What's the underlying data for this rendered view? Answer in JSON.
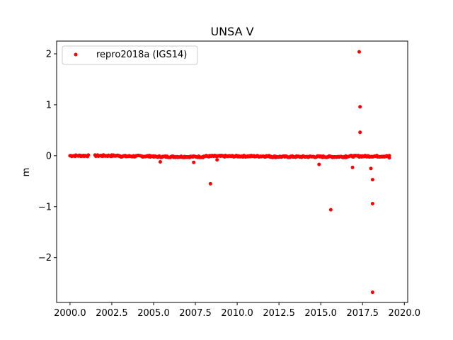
{
  "chart_data": {
    "type": "scatter",
    "title": "UNSA V",
    "xlabel": "",
    "ylabel": "m",
    "xlim": [
      1999.2,
      2020.2
    ],
    "ylim": [
      -2.88,
      2.25
    ],
    "xticks": [
      2000.0,
      2002.5,
      2005.0,
      2007.5,
      2010.0,
      2012.5,
      2015.0,
      2017.5,
      2020.0
    ],
    "xtick_labels": [
      "2000.0",
      "2002.5",
      "2005.0",
      "2007.5",
      "2010.0",
      "2012.5",
      "2015.0",
      "2017.5",
      "2020.0"
    ],
    "yticks": [
      -2,
      -1,
      0,
      1,
      2
    ],
    "ytick_labels": [
      "−2",
      "−1",
      "0",
      "1",
      "2"
    ],
    "grid": false,
    "legend_position": "top-left",
    "series": [
      {
        "name": "repro2018a (IGS14)",
        "color": "#ff0000",
        "marker": "circle",
        "dense_segments": [
          {
            "x_start": 2000.0,
            "x_end": 2001.1,
            "y": 0.0
          },
          {
            "x_start": 2001.5,
            "x_end": 2003.0,
            "y": 0.0
          },
          {
            "x_start": 2003.0,
            "x_end": 2005.0,
            "y": -0.01
          },
          {
            "x_start": 2005.0,
            "x_end": 2008.0,
            "y": -0.02
          },
          {
            "x_start": 2008.0,
            "x_end": 2012.0,
            "y": -0.01
          },
          {
            "x_start": 2012.0,
            "x_end": 2016.5,
            "y": -0.02
          },
          {
            "x_start": 2016.5,
            "x_end": 2019.1,
            "y": -0.01
          }
        ],
        "outliers": [
          {
            "x": 2005.4,
            "y": -0.12
          },
          {
            "x": 2007.4,
            "y": -0.13
          },
          {
            "x": 2008.4,
            "y": -0.55
          },
          {
            "x": 2008.8,
            "y": -0.08
          },
          {
            "x": 2014.9,
            "y": -0.17
          },
          {
            "x": 2015.6,
            "y": -1.06
          },
          {
            "x": 2016.9,
            "y": -0.23
          },
          {
            "x": 2017.3,
            "y": 2.04
          },
          {
            "x": 2017.35,
            "y": 0.96
          },
          {
            "x": 2017.35,
            "y": 0.46
          },
          {
            "x": 2018.0,
            "y": -0.25
          },
          {
            "x": 2018.1,
            "y": -0.47
          },
          {
            "x": 2018.1,
            "y": -0.94
          },
          {
            "x": 2018.1,
            "y": -2.68
          },
          {
            "x": 2019.1,
            "y": -0.04
          }
        ]
      }
    ]
  }
}
